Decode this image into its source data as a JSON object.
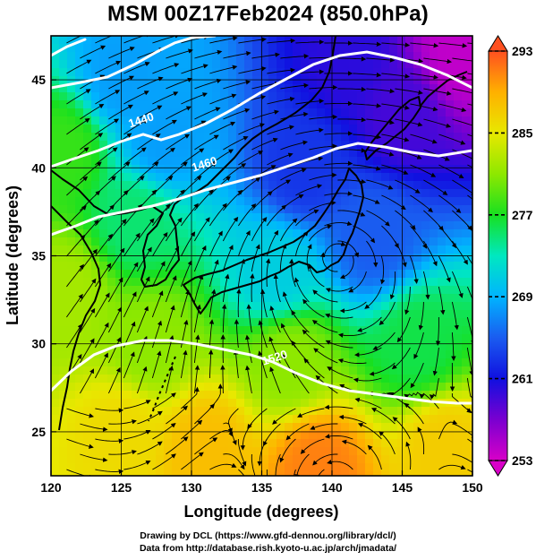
{
  "title": "MSM 00Z17Feb2024 (850.0hPa)",
  "credits": {
    "line1": "Drawing by DCL (https://www.gfd-dennou.org/library/dcl/)",
    "line2": "Data from http://database.rish.kyoto-u.ac.jp/arch/jmadata/"
  },
  "chart_data": {
    "type": "heatmap",
    "map": "Japan region",
    "xlabel": "Longitude (degrees)",
    "ylabel": "Latitude  (degrees)",
    "xlim": [
      120,
      150
    ],
    "ylim": [
      22.5,
      47.5
    ],
    "x_ticks": [
      "120",
      "125",
      "130",
      "135",
      "140",
      "145",
      "150"
    ],
    "y_ticks": [
      "25",
      "30",
      "35",
      "40",
      "45"
    ],
    "grid": true,
    "colorbar": {
      "min": 253,
      "max": 293,
      "tick_labels": [
        "293",
        "285",
        "277",
        "269",
        "261",
        "253"
      ],
      "colors": [
        "#d800c8",
        "#7a00d0",
        "#1010e0",
        "#1a5cf0",
        "#00b4ff",
        "#00e8c0",
        "#18e020",
        "#8ee800",
        "#e8e800",
        "#ffb000",
        "#ff5020"
      ]
    },
    "contour_labels": [
      {
        "text": "1440",
        "lon": 126.5,
        "lat": 42.5
      },
      {
        "text": "1460",
        "lon": 131,
        "lat": 40
      },
      {
        "text": "1520",
        "lon": 136,
        "lat": 29
      }
    ],
    "field_centers": [
      {
        "lon": 125,
        "lat": 45,
        "value": 268
      },
      {
        "lon": 128,
        "lat": 41.5,
        "value": 268
      },
      {
        "lon": 126,
        "lat": 37,
        "value": 275
      },
      {
        "lon": 138,
        "lat": 40,
        "value": 263
      },
      {
        "lon": 145,
        "lat": 43,
        "value": 259
      },
      {
        "lon": 149,
        "lat": 46.5,
        "value": 254
      },
      {
        "lon": 141,
        "lat": 46,
        "value": 260
      },
      {
        "lon": 143,
        "lat": 36,
        "value": 265
      },
      {
        "lon": 136,
        "lat": 34,
        "value": 271
      },
      {
        "lon": 127,
        "lat": 30,
        "value": 281
      },
      {
        "lon": 137,
        "lat": 29,
        "value": 281
      },
      {
        "lon": 146,
        "lat": 30,
        "value": 276
      },
      {
        "lon": 125,
        "lat": 25,
        "value": 286
      },
      {
        "lon": 131,
        "lat": 24,
        "value": 288
      },
      {
        "lon": 139,
        "lat": 23,
        "value": 291
      },
      {
        "lon": 148,
        "lat": 24,
        "value": 287
      },
      {
        "lon": 121,
        "lat": 41,
        "value": 278
      },
      {
        "lon": 121,
        "lat": 33,
        "value": 282
      }
    ],
    "streamlines": "wind streamlines shown as black arrowed curves"
  }
}
